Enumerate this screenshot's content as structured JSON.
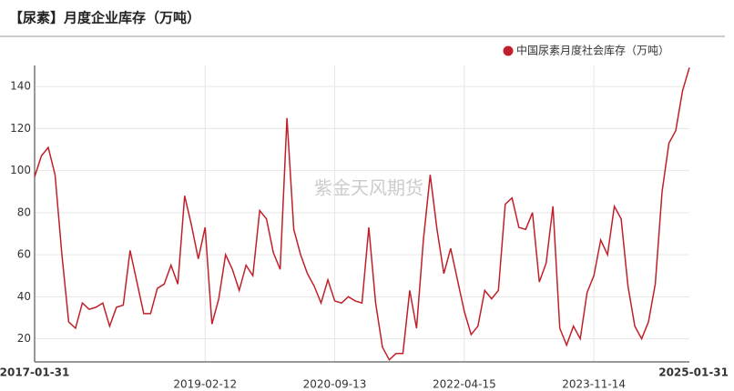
{
  "chart_data": {
    "type": "line",
    "title": "【尿素】月度企业库存（万吨）",
    "watermark": "紫金天风期货",
    "categories": [
      "2017-01-31",
      null,
      null,
      null,
      null,
      null,
      null,
      null,
      null,
      null,
      null,
      null,
      null,
      null,
      null,
      null,
      null,
      null,
      null,
      null,
      null,
      null,
      null,
      null,
      null,
      "2019-02-12",
      null,
      null,
      null,
      null,
      null,
      null,
      null,
      null,
      null,
      null,
      null,
      null,
      null,
      null,
      null,
      null,
      null,
      null,
      "2020-09-13",
      null,
      null,
      null,
      null,
      null,
      null,
      null,
      null,
      null,
      null,
      null,
      null,
      null,
      null,
      null,
      null,
      null,
      null,
      "2022-04-15",
      null,
      null,
      null,
      null,
      null,
      null,
      null,
      null,
      null,
      null,
      null,
      null,
      null,
      null,
      null,
      null,
      null,
      null,
      "2023-11-14",
      null,
      null,
      null,
      null,
      null,
      null,
      null,
      null,
      null,
      null,
      null,
      null,
      null,
      "2025-01-31"
    ],
    "series": [
      {
        "name": "中国尿素月度社会库存（万吨）",
        "color": "#c0202a",
        "values": [
          97,
          107,
          111,
          98,
          60,
          28,
          25,
          37,
          34,
          35,
          37,
          26,
          35,
          36,
          62,
          47,
          32,
          32,
          44,
          46,
          55,
          46,
          88,
          74,
          58,
          73,
          27,
          39,
          60,
          53,
          43,
          55,
          50,
          81,
          77,
          61,
          53,
          125,
          72,
          60,
          51,
          45,
          37,
          48,
          38,
          37,
          40,
          38,
          37,
          73,
          37,
          16,
          10,
          13,
          13,
          43,
          25,
          67,
          98,
          72,
          51,
          63,
          48,
          33,
          22,
          26,
          43,
          39,
          43,
          84,
          87,
          73,
          72,
          80,
          47,
          56,
          83,
          25,
          17,
          26,
          20,
          42,
          50,
          67,
          60,
          83,
          77,
          45,
          26,
          20,
          28,
          46,
          90,
          113,
          119,
          138,
          149
        ]
      }
    ],
    "ylim": [
      9,
      150
    ],
    "yticks": [
      20,
      40,
      60,
      80,
      100,
      120,
      140
    ],
    "grid": true,
    "legend": "top-right"
  }
}
